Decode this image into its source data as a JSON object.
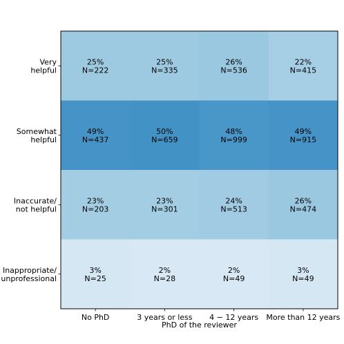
{
  "chart_data": {
    "type": "heatmap",
    "xlabel": "PhD of the reviewer",
    "ylabel": "",
    "x_categories": [
      "No PhD",
      "3 years or less",
      "4 − 12 years",
      "More than 12 years"
    ],
    "y_categories": [
      [
        "Very",
        "helpful"
      ],
      [
        "Somewhat",
        "helpful"
      ],
      [
        "Inaccurate/",
        "not helpful"
      ],
      [
        "Inappropriate/",
        "unprofessional"
      ]
    ],
    "percent_labels": [
      [
        "25%",
        "25%",
        "26%",
        "22%"
      ],
      [
        "49%",
        "50%",
        "48%",
        "49%"
      ],
      [
        "23%",
        "23%",
        "24%",
        "26%"
      ],
      [
        "3%",
        "2%",
        "2%",
        "3%"
      ]
    ],
    "count_labels": [
      [
        "N=222",
        "N=335",
        "N=536",
        "N=415"
      ],
      [
        "N=437",
        "N=659",
        "N=999",
        "N=915"
      ],
      [
        "N=203",
        "N=301",
        "N=513",
        "N=474"
      ],
      [
        "N=25",
        "N=28",
        "N=49",
        "N=49"
      ]
    ],
    "values": [
      [
        25,
        25,
        26,
        22
      ],
      [
        49,
        50,
        48,
        49
      ],
      [
        23,
        23,
        24,
        26
      ],
      [
        3,
        2,
        2,
        3
      ]
    ],
    "colormap": "Blues",
    "grid": false
  }
}
